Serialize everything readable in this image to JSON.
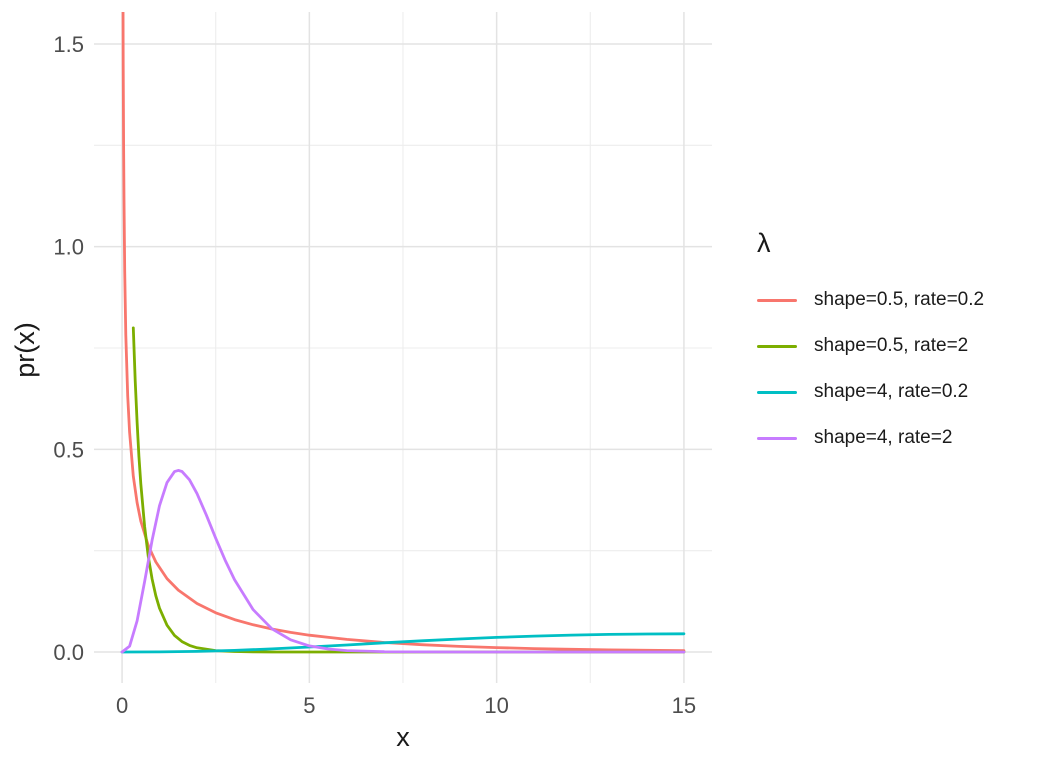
{
  "page": {
    "background": "#FFFFFF"
  },
  "chart_data": {
    "type": "line",
    "title": "",
    "xlabel": "x",
    "ylabel": "pr(x)",
    "xlim": [
      -0.75,
      15.75
    ],
    "ylim": [
      -0.0765,
      1.579
    ],
    "x_ticks": {
      "values": [
        0,
        5,
        10,
        15
      ],
      "labels": [
        "0",
        "5",
        "10",
        "15"
      ]
    },
    "y_ticks": {
      "values": [
        0,
        0.5,
        1.0,
        1.5
      ],
      "labels": [
        "0.0",
        "0.5",
        "1.0",
        "1.5"
      ]
    },
    "grid": {
      "visible": true,
      "x_minor": [
        2.5,
        7.5,
        12.5
      ],
      "y_minor": [
        0.25,
        0.75,
        1.25
      ],
      "major_color": "#E3E3E3",
      "minor_color": "#EDEDED"
    },
    "tick_label_color": "#4D4D4D",
    "axis_title_color": "#1A1A1A",
    "legend": {
      "position": "right",
      "title": "λ"
    },
    "series": [
      {
        "name": "shape=0.5, rate=0.2",
        "color": "#F8766D",
        "x": [
          0.024,
          0.03,
          0.04,
          0.05,
          0.07,
          0.1,
          0.15,
          0.2,
          0.3,
          0.4,
          0.5,
          0.7,
          0.9,
          1.2,
          1.5,
          2,
          2.5,
          3,
          3.5,
          4,
          4.5,
          5,
          6,
          7,
          8,
          9,
          10,
          11,
          12,
          13,
          14,
          15
        ],
        "y": [
          1.621,
          1.448,
          1.2515,
          1.1171,
          0.9404,
          0.7821,
          0.6322,
          0.5421,
          0.4338,
          0.3683,
          0.3229,
          0.2622,
          0.2222,
          0.1812,
          0.1526,
          0.1196,
          0.0968,
          0.0799,
          0.067,
          0.0567,
          0.0484,
          0.0415,
          0.031,
          0.0235,
          0.018,
          0.0139,
          0.0108,
          0.0084,
          0.0066,
          0.0052,
          0.0041,
          0.0033
        ]
      },
      {
        "name": "shape=0.5, rate=2",
        "color": "#7CAE00",
        "x": [
          0.3,
          0.35,
          0.4,
          0.45,
          0.5,
          0.6,
          0.7,
          0.8,
          0.9,
          1,
          1.2,
          1.4,
          1.6,
          1.8,
          2,
          2.5,
          3,
          3.5,
          4,
          5,
          6,
          8,
          10,
          12,
          15
        ],
        "y": [
          0.7995,
          0.6697,
          0.5669,
          0.4836,
          0.4151,
          0.3102,
          0.2352,
          0.1801,
          0.139,
          0.108,
          0.0661,
          0.041,
          0.0257,
          0.0162,
          0.0103,
          0.0034,
          0.0011,
          0.0004,
          0.0001,
          0,
          0,
          0,
          0,
          0,
          0
        ]
      },
      {
        "name": "shape=4, rate=0.2",
        "color": "#00BFC4",
        "x": [
          0,
          1,
          2,
          3,
          4,
          5,
          6,
          7,
          8,
          9,
          10,
          11,
          12,
          13,
          14,
          15
        ],
        "y": [
          0,
          0.0002,
          0.0014,
          0.004,
          0.0077,
          0.0123,
          0.0173,
          0.0226,
          0.0276,
          0.0321,
          0.0361,
          0.0393,
          0.0418,
          0.0435,
          0.0445,
          0.0448
        ]
      },
      {
        "name": "shape=4, rate=2",
        "color": "#C77CFF",
        "x": [
          0,
          0.2,
          0.4,
          0.6,
          0.8,
          1,
          1.2,
          1.4,
          1.5,
          1.6,
          1.8,
          2,
          2.25,
          2.5,
          2.75,
          3,
          3.5,
          4,
          4.5,
          5,
          5.5,
          6,
          7,
          8,
          9,
          10,
          12,
          15
        ],
        "y": [
          0,
          0.0143,
          0.0767,
          0.1735,
          0.2757,
          0.3609,
          0.418,
          0.445,
          0.4481,
          0.4452,
          0.4249,
          0.3907,
          0.3374,
          0.2808,
          0.2267,
          0.1785,
          0.1043,
          0.0572,
          0.03,
          0.0151,
          0.0074,
          0.0035,
          0.0008,
          0.0002,
          0,
          0,
          0,
          0
        ]
      }
    ]
  }
}
